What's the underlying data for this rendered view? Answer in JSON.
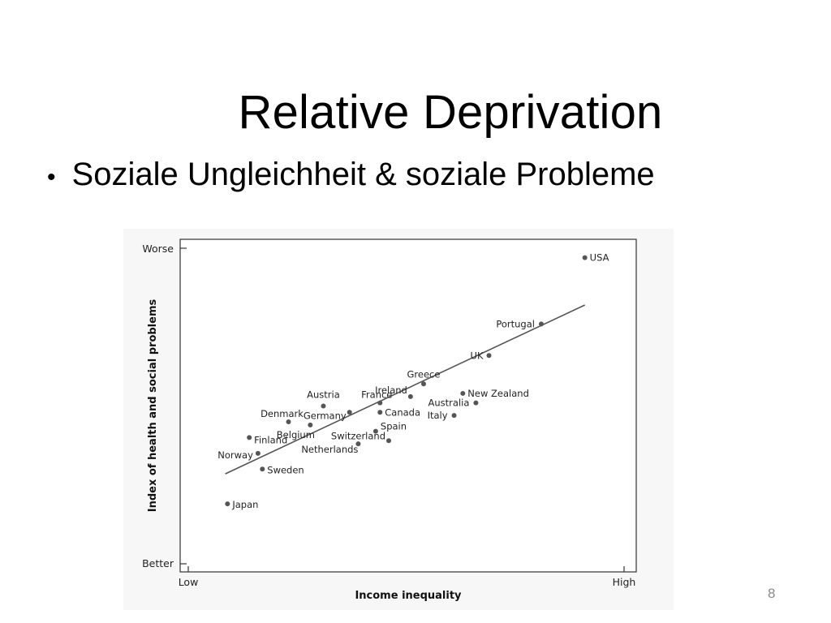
{
  "slide": {
    "title": "Relative Deprivation",
    "bullet": "Soziale Ungleichheit & soziale Probleme",
    "page_number": "8"
  },
  "chart_data": {
    "type": "scatter",
    "title": "",
    "xlabel": "Income inequality",
    "ylabel": "Index of health and social problems",
    "x_tick_labels": [
      "Low",
      "High"
    ],
    "y_tick_labels": [
      "Better",
      "Worse"
    ],
    "xlim": [
      0,
      100
    ],
    "ylim": [
      0,
      100
    ],
    "grid": false,
    "legend": "none",
    "points": [
      {
        "label": "USA",
        "x": 91,
        "y": 97
      },
      {
        "label": "Portugal",
        "x": 81,
        "y": 76
      },
      {
        "label": "UK",
        "x": 69,
        "y": 66
      },
      {
        "label": "Greece",
        "x": 54,
        "y": 57
      },
      {
        "label": "Ireland",
        "x": 51,
        "y": 53
      },
      {
        "label": "New Zealand",
        "x": 63,
        "y": 54
      },
      {
        "label": "France",
        "x": 44,
        "y": 51
      },
      {
        "label": "Australia",
        "x": 66,
        "y": 51
      },
      {
        "label": "Canada",
        "x": 44,
        "y": 48
      },
      {
        "label": "Austria",
        "x": 31,
        "y": 50
      },
      {
        "label": "Germany",
        "x": 37,
        "y": 48
      },
      {
        "label": "Italy",
        "x": 61,
        "y": 47
      },
      {
        "label": "Denmark",
        "x": 23,
        "y": 45
      },
      {
        "label": "Belgium",
        "x": 28,
        "y": 44
      },
      {
        "label": "Spain",
        "x": 43,
        "y": 42
      },
      {
        "label": "Switzerland",
        "x": 46,
        "y": 39
      },
      {
        "label": "Finland",
        "x": 14,
        "y": 40
      },
      {
        "label": "Netherlands",
        "x": 39,
        "y": 38
      },
      {
        "label": "Norway",
        "x": 16,
        "y": 35
      },
      {
        "label": "Sweden",
        "x": 17,
        "y": 30
      },
      {
        "label": "Japan",
        "x": 9,
        "y": 19
      }
    ],
    "trend_line": {
      "x": [
        8.5,
        91
      ],
      "y": [
        28.5,
        82
      ]
    }
  }
}
